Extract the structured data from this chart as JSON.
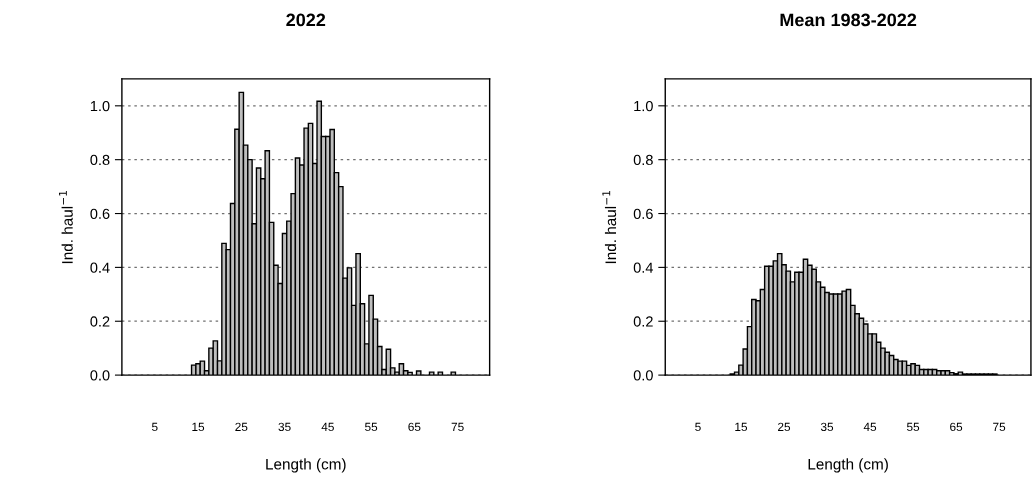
{
  "chart_data": [
    {
      "type": "histogram",
      "title": "2022",
      "xlabel": "Length (cm)",
      "ylabel": "Ind. haul$^{−1}$",
      "color": "#bebebe",
      "bins": [
        0.5,
        1.5,
        2.5,
        3.5,
        4.5,
        5.5,
        6.5,
        7.5,
        8.5,
        9.5,
        10.5,
        11.5,
        12.5,
        13.5,
        14.5,
        15.5,
        16.5,
        17.5,
        18.5,
        19.5,
        20.5,
        21.5,
        22.5,
        23.5,
        24.5,
        25.5,
        26.5,
        27.5,
        28.5,
        29.5,
        30.5,
        31.5,
        32.5,
        33.5,
        34.5,
        35.5,
        36.5,
        37.5,
        38.5,
        39.5,
        40.5,
        41.5,
        42.5,
        43.5,
        44.5,
        45.5,
        46.5,
        47.5,
        48.5,
        49.5,
        50.5,
        51.5,
        52.5,
        53.5,
        54.5,
        55.5,
        56.5,
        57.5,
        58.5,
        59.5,
        60.5,
        61.5,
        62.5,
        63.5,
        64.5,
        65.5,
        66.5,
        67.5,
        68.5,
        69.5,
        70.5,
        71.5,
        72.5,
        73.5,
        74.5,
        75.5,
        76.5,
        77.5,
        78.5,
        79.5
      ],
      "values": [
        0,
        0,
        0,
        0,
        0,
        0,
        0,
        0,
        0,
        0,
        0,
        0,
        0,
        0.037,
        0.042,
        0.052,
        0.016,
        0.1,
        0.127,
        0.053,
        0.489,
        0.466,
        0.637,
        0.913,
        1.05,
        0.854,
        0.8,
        0.562,
        0.769,
        0.729,
        0.833,
        0.567,
        0.408,
        0.34,
        0.526,
        0.572,
        0.674,
        0.806,
        0.78,
        0.917,
        0.935,
        0.786,
        1.017,
        0.886,
        0.886,
        0.912,
        0.752,
        0.7,
        0.36,
        0.398,
        0.259,
        0.451,
        0.265,
        0.116,
        0.296,
        0.208,
        0.106,
        0.021,
        0.096,
        0.027,
        0.011,
        0.042,
        0.016,
        0.01,
        0,
        0.015,
        0,
        0,
        0.011,
        0,
        0.011,
        0,
        0,
        0.011,
        0,
        0,
        0,
        0,
        0
      ],
      "xlim": [
        -2.6,
        82.4
      ],
      "ylim": [
        0,
        1.1
      ],
      "xticks": [
        5,
        15,
        25,
        35,
        45,
        55,
        65,
        75
      ],
      "yticks": [
        {
          "value": 0,
          "label": "0.0"
        },
        {
          "value": 0.2,
          "label": "0.2"
        },
        {
          "value": 0.4,
          "label": "0.4"
        },
        {
          "value": 0.6,
          "label": "0.6"
        },
        {
          "value": 0.8,
          "label": "0.8"
        },
        {
          "value": 1.0,
          "label": "1.0"
        }
      ],
      "grid": "y"
    },
    {
      "type": "histogram",
      "title": "Mean 1983-2022",
      "xlabel": "Length (cm)",
      "ylabel": "Ind. haul$^{−1}$",
      "color": "#bebebe",
      "bins": [
        0.5,
        1.5,
        2.5,
        3.5,
        4.5,
        5.5,
        6.5,
        7.5,
        8.5,
        9.5,
        10.5,
        11.5,
        12.5,
        13.5,
        14.5,
        15.5,
        16.5,
        17.5,
        18.5,
        19.5,
        20.5,
        21.5,
        22.5,
        23.5,
        24.5,
        25.5,
        26.5,
        27.5,
        28.5,
        29.5,
        30.5,
        31.5,
        32.5,
        33.5,
        34.5,
        35.5,
        36.5,
        37.5,
        38.5,
        39.5,
        40.5,
        41.5,
        42.5,
        43.5,
        44.5,
        45.5,
        46.5,
        47.5,
        48.5,
        49.5,
        50.5,
        51.5,
        52.5,
        53.5,
        54.5,
        55.5,
        56.5,
        57.5,
        58.5,
        59.5,
        60.5,
        61.5,
        62.5,
        63.5,
        64.5,
        65.5,
        66.5,
        67.5,
        68.5,
        69.5,
        70.5,
        71.5,
        72.5,
        73.5,
        74.5,
        75.5,
        76.5,
        77.5,
        78.5,
        79.5
      ],
      "values": [
        0,
        0,
        0,
        0,
        0,
        0,
        0,
        0,
        0,
        0,
        0,
        0,
        0.004,
        0.011,
        0.037,
        0.097,
        0.18,
        0.281,
        0.276,
        0.318,
        0.404,
        0.404,
        0.424,
        0.451,
        0.41,
        0.386,
        0.346,
        0.382,
        0.382,
        0.43,
        0.408,
        0.393,
        0.346,
        0.326,
        0.307,
        0.301,
        0.301,
        0.301,
        0.312,
        0.318,
        0.259,
        0.228,
        0.211,
        0.19,
        0.153,
        0.153,
        0.122,
        0.1,
        0.085,
        0.073,
        0.058,
        0.052,
        0.052,
        0.036,
        0.042,
        0.036,
        0.021,
        0.021,
        0.021,
        0.021,
        0.016,
        0.016,
        0.016,
        0.009,
        0.005,
        0.011,
        0.004,
        0.004,
        0.004,
        0.004,
        0.004,
        0.004,
        0.004,
        0.004,
        0,
        0,
        0,
        0,
        0
      ],
      "xlim": [
        -2.6,
        82.4
      ],
      "ylim": [
        0,
        1.1
      ],
      "xticks": [
        5,
        15,
        25,
        35,
        45,
        55,
        65,
        75
      ],
      "yticks": [
        {
          "value": 0,
          "label": "0.0"
        },
        {
          "value": 0.2,
          "label": "0.2"
        },
        {
          "value": 0.4,
          "label": "0.4"
        },
        {
          "value": 0.6,
          "label": "0.6"
        },
        {
          "value": 0.8,
          "label": "0.8"
        },
        {
          "value": 1.0,
          "label": "1.0"
        }
      ],
      "grid": "y"
    }
  ]
}
